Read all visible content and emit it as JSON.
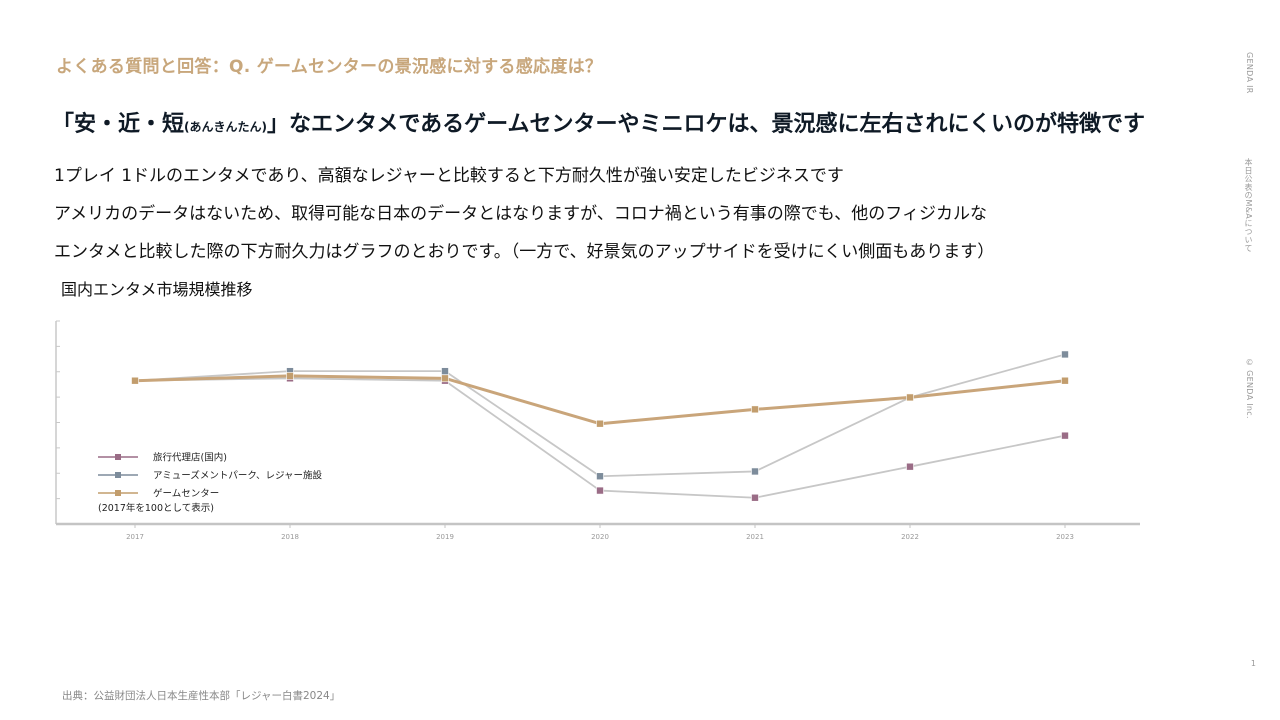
{
  "faq_title": "よくある質問と回答：Q. ゲームセンターの景況感に対する感応度は？",
  "headline": {
    "part1": "「安・近・短",
    "reading": "(あんきんたん)",
    "part2": "」なエンタメであるゲームセンターやミニロケは、景況感に左右されにくいのが特徴です"
  },
  "body_lines": [
    "1プレイ 1ドルのエンタメであり、高額なレジャーと比較すると下方耐久性が強い安定したビジネスです",
    "アメリカのデータはないため、取得可能な日本のデータとはなりますが、コロナ禍という有事の際でも、他のフィジカルな",
    "エンタメと比較した際の下方耐久力はグラフのとおりです。（一方で、好景気のアップサイドを受けにくい側面もあります）"
  ],
  "chart_caption": "国内エンタメ市場規模推移",
  "source": "出典：公益財団法人日本生産性本部「レジャー白書2024」",
  "side_labels": {
    "ir": "GENDA IR",
    "ma": "本日公表のM&Aについて",
    "copyright": "© GENDA Inc."
  },
  "page_number": "1",
  "chart_data": {
    "type": "line",
    "categories": [
      "2017",
      "2018",
      "2019",
      "2020",
      "2021",
      "2022",
      "2023"
    ],
    "ylim": [
      40,
      125
    ],
    "grid": false,
    "legend_note": "(2017年を100として表示)",
    "series": [
      {
        "name": "旅行代理店(国内)",
        "color": "#9a7b8c",
        "marker_color": "#9a6c86",
        "values": [
          100,
          101,
          100,
          54,
          51,
          64,
          77
        ]
      },
      {
        "name": "アミューズメントパーク、レジャー施設",
        "color": "#a9b0b8",
        "marker_color": "#7d8c9b",
        "values": [
          100,
          104,
          104,
          60,
          62,
          93,
          111
        ]
      },
      {
        "name": "ゲームセンター",
        "color": "#c9a57a",
        "marker_color": "#c29d6d",
        "values": [
          100,
          102,
          101,
          82,
          88,
          93,
          100
        ]
      }
    ]
  }
}
